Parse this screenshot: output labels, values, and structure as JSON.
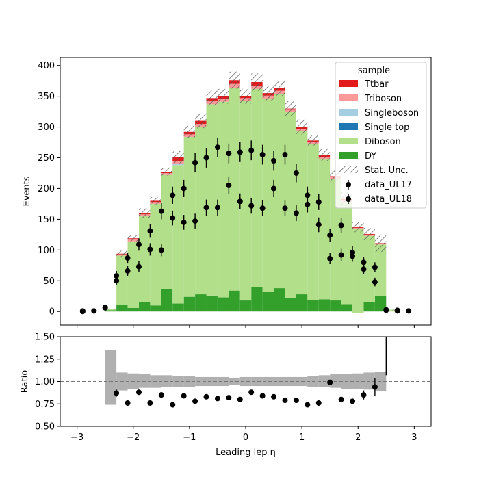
{
  "chart_data": [
    {
      "type": "bar",
      "panel": "main",
      "stacked": true,
      "ylabel": "Events",
      "xlim": [
        -3.3,
        3.3
      ],
      "ylim": [
        -22,
        413
      ],
      "yticks": [
        "0",
        "50",
        "100",
        "150",
        "200",
        "250",
        "300",
        "350",
        "400"
      ],
      "bin_edges": [
        -2.7,
        -2.5,
        -2.3,
        -2.1,
        -1.9,
        -1.7,
        -1.5,
        -1.3,
        -1.1,
        -0.9,
        -0.7,
        -0.5,
        -0.3,
        -0.1,
        0.1,
        0.3,
        0.5,
        0.7,
        0.9,
        1.1,
        1.3,
        1.5,
        1.7,
        1.9,
        2.1,
        2.3,
        2.5,
        2.7
      ],
      "series": [
        {
          "name": "DY",
          "color": "#33a02c",
          "values": [
            0,
            2,
            11,
            6,
            15,
            10,
            36,
            13,
            24,
            28,
            26,
            23,
            34,
            18,
            40,
            32,
            38,
            22,
            28,
            19,
            20,
            18,
            12,
            -2,
            15,
            25,
            0
          ]
        },
        {
          "name": "Diboson",
          "color": "#b2df8a",
          "values": [
            0,
            2,
            80,
            108,
            140,
            165,
            186,
            225,
            260,
            272,
            311,
            318,
            330,
            324,
            322,
            314,
            316,
            302,
            265,
            253,
            228,
            198,
            166,
            136,
            108,
            84,
            3
          ]
        },
        {
          "name": "Single top",
          "color": "#1f78b4",
          "values": [
            0,
            0,
            0,
            0,
            0,
            0,
            0,
            0,
            0,
            0,
            0,
            0,
            0,
            0,
            0,
            0,
            0,
            0,
            0,
            0,
            0,
            0,
            0,
            0,
            0,
            0,
            0
          ]
        },
        {
          "name": "Singleboson",
          "color": "#a6cee3",
          "values": [
            0,
            0,
            0,
            0,
            0,
            0,
            0,
            2,
            0,
            0,
            0,
            0,
            0,
            0,
            0,
            0,
            0,
            0,
            0,
            0,
            0,
            0,
            0,
            0,
            0,
            0,
            0
          ]
        },
        {
          "name": "Triboson",
          "color": "#fb9a99",
          "values": [
            0,
            0,
            2,
            3,
            3,
            3,
            3,
            4,
            4,
            5,
            5,
            5,
            6,
            5,
            5,
            5,
            5,
            4,
            4,
            4,
            3,
            3,
            3,
            2,
            2,
            1,
            0
          ]
        },
        {
          "name": "Ttbar",
          "color": "#e31a1c",
          "values": [
            0,
            0,
            1,
            2,
            2,
            2,
            2,
            7,
            4,
            5,
            5,
            4,
            6,
            3,
            6,
            4,
            4,
            2,
            3,
            2,
            3,
            1,
            2,
            1,
            1,
            1,
            0
          ]
        }
      ],
      "stat_unc_halfwidth": [
        0,
        1,
        5,
        5,
        8,
        6,
        6,
        10,
        10,
        12,
        12,
        12,
        14,
        12,
        14,
        12,
        12,
        12,
        12,
        8,
        10,
        10,
        12,
        8,
        10,
        14,
        1
      ],
      "stat_unc_label": "Stat. Unc.",
      "data": [
        {
          "name": "data_UL17",
          "x": [
            -2.9,
            -2.7,
            -2.5,
            -2.3,
            -2.1,
            -1.9,
            -1.7,
            -1.5,
            -1.3,
            -1.1,
            -0.9,
            -0.7,
            -0.5,
            -0.3,
            -0.1,
            0.1,
            0.3,
            0.5,
            0.7,
            0.9,
            1.1,
            1.3,
            1.5,
            1.7,
            1.9,
            2.1,
            2.3,
            2.5,
            2.7,
            2.9
          ],
          "values": [
            1,
            1,
            7,
            58,
            87,
            109,
            131,
            163,
            189,
            200,
            242,
            250,
            267,
            257,
            259,
            262,
            255,
            245,
            255,
            225,
            189,
            178,
            124,
            140,
            96,
            80,
            72,
            3,
            2,
            1
          ],
          "errors": [
            1,
            1,
            3,
            8,
            9,
            10,
            11,
            13,
            14,
            14,
            16,
            16,
            16,
            16,
            16,
            16,
            16,
            16,
            16,
            15,
            14,
            13,
            11,
            12,
            10,
            9,
            8,
            2,
            1,
            1
          ]
        },
        {
          "name": "data_UL18",
          "x": [
            -2.9,
            -2.7,
            -2.5,
            -2.3,
            -2.1,
            -1.9,
            -1.7,
            -1.5,
            -1.3,
            -1.1,
            -0.9,
            -0.7,
            -0.5,
            -0.3,
            -0.1,
            0.1,
            0.3,
            0.5,
            0.7,
            0.9,
            1.1,
            1.3,
            1.5,
            1.7,
            1.9,
            2.1,
            2.3,
            2.5,
            2.7,
            2.9
          ],
          "values": [
            0,
            1,
            6,
            50,
            66,
            73,
            101,
            100,
            152,
            145,
            147,
            169,
            169,
            205,
            179,
            172,
            168,
            200,
            168,
            160,
            174,
            141,
            86,
            92,
            90,
            69,
            48,
            2,
            1,
            1
          ],
          "errors": [
            1,
            1,
            2,
            7,
            8,
            9,
            10,
            10,
            12,
            12,
            12,
            13,
            13,
            14,
            13,
            13,
            13,
            14,
            13,
            13,
            13,
            12,
            9,
            10,
            9,
            8,
            7,
            1,
            1,
            1
          ]
        }
      ],
      "legend": {
        "title": "sample",
        "position": "upper right"
      }
    },
    {
      "type": "scatter",
      "panel": "ratio",
      "xlabel": "Leading lep η",
      "ylabel": "Ratio",
      "xlim": [
        -3.3,
        3.3
      ],
      "ylim": [
        0.5,
        1.5
      ],
      "xticks": [
        "−3",
        "−2",
        "−1",
        "0",
        "1",
        "2",
        "3"
      ],
      "yticks": [
        "0.50",
        "0.75",
        "1.00",
        "1.25",
        "1.50"
      ],
      "reference_line": 1.0,
      "unc_band": [
        {
          "x0": -2.5,
          "x1": -2.3,
          "lo": 0.74,
          "hi": 1.35
        },
        {
          "x0": -2.3,
          "x1": -2.1,
          "lo": 0.9,
          "hi": 1.1
        },
        {
          "x0": -2.1,
          "x1": -1.9,
          "lo": 0.92,
          "hi": 1.09
        },
        {
          "x0": -1.9,
          "x1": -1.7,
          "lo": 0.93,
          "hi": 1.08
        },
        {
          "x0": -1.7,
          "x1": -1.5,
          "lo": 0.93,
          "hi": 1.07
        },
        {
          "x0": -1.5,
          "x1": -1.3,
          "lo": 0.94,
          "hi": 1.07
        },
        {
          "x0": -1.3,
          "x1": -1.1,
          "lo": 0.94,
          "hi": 1.06
        },
        {
          "x0": -1.1,
          "x1": -0.9,
          "lo": 0.94,
          "hi": 1.06
        },
        {
          "x0": -0.9,
          "x1": -0.7,
          "lo": 0.95,
          "hi": 1.05
        },
        {
          "x0": -0.7,
          "x1": -0.5,
          "lo": 0.95,
          "hi": 1.05
        },
        {
          "x0": -0.5,
          "x1": -0.3,
          "lo": 0.95,
          "hi": 1.05
        },
        {
          "x0": -0.3,
          "x1": -0.1,
          "lo": 0.96,
          "hi": 1.04
        },
        {
          "x0": -0.1,
          "x1": 0.1,
          "lo": 0.95,
          "hi": 1.05
        },
        {
          "x0": 0.1,
          "x1": 0.3,
          "lo": 0.95,
          "hi": 1.05
        },
        {
          "x0": 0.3,
          "x1": 0.5,
          "lo": 0.95,
          "hi": 1.05
        },
        {
          "x0": 0.5,
          "x1": 0.7,
          "lo": 0.95,
          "hi": 1.05
        },
        {
          "x0": 0.7,
          "x1": 0.9,
          "lo": 0.95,
          "hi": 1.05
        },
        {
          "x0": 0.9,
          "x1": 1.1,
          "lo": 0.95,
          "hi": 1.05
        },
        {
          "x0": 1.1,
          "x1": 1.3,
          "lo": 0.94,
          "hi": 1.06
        },
        {
          "x0": 1.3,
          "x1": 1.5,
          "lo": 0.94,
          "hi": 1.07
        },
        {
          "x0": 1.5,
          "x1": 1.7,
          "lo": 0.93,
          "hi": 1.08
        },
        {
          "x0": 1.7,
          "x1": 1.9,
          "lo": 0.92,
          "hi": 1.08
        },
        {
          "x0": 1.9,
          "x1": 2.1,
          "lo": 0.92,
          "hi": 1.09
        },
        {
          "x0": 2.1,
          "x1": 2.3,
          "lo": 0.91,
          "hi": 1.1
        },
        {
          "x0": 2.3,
          "x1": 2.5,
          "lo": 0.89,
          "hi": 1.11
        }
      ],
      "points": {
        "x": [
          -2.3,
          -2.1,
          -1.9,
          -1.7,
          -1.5,
          -1.3,
          -1.1,
          -0.9,
          -0.7,
          -0.5,
          -0.3,
          -0.1,
          0.1,
          0.3,
          0.5,
          0.7,
          0.9,
          1.1,
          1.3,
          1.5,
          1.7,
          1.9,
          2.1,
          2.3
        ],
        "values": [
          0.87,
          0.76,
          0.88,
          0.76,
          0.85,
          0.74,
          0.84,
          0.78,
          0.83,
          0.81,
          0.82,
          0.8,
          0.88,
          0.84,
          0.83,
          0.79,
          0.79,
          0.74,
          0.76,
          0.99,
          0.8,
          0.78,
          0.85,
          0.94
        ],
        "errors": [
          0.04,
          0.03,
          0.03,
          0.02,
          0.03,
          0.02,
          0.02,
          0.02,
          0.02,
          0.02,
          0.02,
          0.02,
          0.02,
          0.02,
          0.02,
          0.02,
          0.02,
          0.02,
          0.03,
          0.03,
          0.03,
          0.03,
          0.05,
          0.1
        ]
      },
      "extra_errbar": {
        "x": 2.5,
        "lo": 1.07,
        "hi": 1.5
      }
    }
  ]
}
